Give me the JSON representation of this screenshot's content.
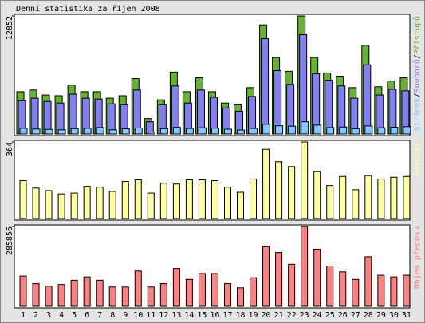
{
  "title": "Denní statistika za říjen 2008",
  "categories": [
    "1",
    "2",
    "3",
    "4",
    "5",
    "6",
    "7",
    "8",
    "9",
    "10",
    "11",
    "12",
    "13",
    "14",
    "15",
    "16",
    "17",
    "18",
    "19",
    "20",
    "21",
    "22",
    "23",
    "24",
    "25",
    "26",
    "27",
    "28",
    "29",
    "30",
    "31"
  ],
  "weekend": [
    3,
    4,
    10,
    11,
    17,
    18,
    24,
    25
  ],
  "weekend_color": "#66aa22",
  "legend_separator": "/",
  "chart_data": [
    {
      "type": "bar",
      "ylim": [
        0,
        12852
      ],
      "yticks": [
        12852
      ],
      "series": [
        {
          "name": "Přístupů",
          "color": "#66b032",
          "values": [
            4610,
            4790,
            4250,
            4170,
            5320,
            4610,
            4610,
            3900,
            4170,
            6030,
            1680,
            3720,
            6740,
            4610,
            6120,
            4610,
            3370,
            3190,
            5050,
            11880,
            8330,
            6830,
            12852,
            8330,
            6650,
            6290,
            5050,
            9660,
            5140,
            5760,
            6120
          ]
        },
        {
          "name": "Souborů",
          "color": "#8080f0",
          "values": [
            3630,
            3900,
            3540,
            3370,
            4340,
            3900,
            3810,
            3280,
            3190,
            4790,
            1330,
            3190,
            5230,
            3370,
            4790,
            3990,
            2840,
            2480,
            4080,
            10370,
            6910,
            5400,
            10810,
            6560,
            5850,
            5230,
            3900,
            7530,
            4250,
            4870,
            4700
          ]
        },
        {
          "name": "Stránek",
          "color": "#80c8ff",
          "values": [
            620,
            540,
            500,
            450,
            580,
            620,
            700,
            450,
            560,
            650,
            200,
            580,
            720,
            600,
            680,
            640,
            520,
            430,
            600,
            1060,
            900,
            850,
            1330,
            970,
            700,
            760,
            560,
            880,
            680,
            740,
            800
          ]
        }
      ]
    },
    {
      "type": "bar",
      "ylim": [
        0,
        364
      ],
      "yticks": [
        364
      ],
      "series": [
        {
          "name": "Návštěv",
          "color": "#ffffa0",
          "values": [
            180,
            145,
            133,
            117,
            121,
            153,
            149,
            129,
            176,
            184,
            121,
            168,
            164,
            184,
            184,
            180,
            149,
            125,
            188,
            329,
            270,
            247,
            364,
            223,
            157,
            200,
            137,
            204,
            188,
            196,
            200
          ]
        }
      ]
    },
    {
      "type": "bar",
      "ylim": [
        0,
        285856
      ],
      "yticks": [
        285856
      ],
      "series": [
        {
          "name": "Objem přenosu",
          "color": "#ff8080",
          "values": [
            108300,
            81200,
            72200,
            78200,
            93300,
            105300,
            93300,
            69200,
            69200,
            126400,
            69200,
            81200,
            135400,
            96300,
            117400,
            117400,
            81200,
            66200,
            102300,
            213600,
            192600,
            150500,
            285856,
            204600,
            144400,
            123400,
            96300,
            177500,
            111300,
            105300,
            111300
          ]
        }
      ]
    }
  ]
}
